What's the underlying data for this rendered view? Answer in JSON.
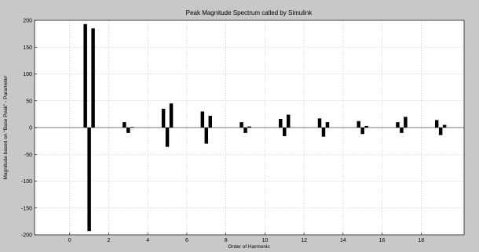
{
  "colors": {
    "figure_bg": "#c8c8c8",
    "axes_bg": "#ffffff",
    "bar": "#000000",
    "zero_line": "#000000"
  },
  "chart_data": {
    "type": "bar",
    "title": "Peak Magnitude Spectrum called by Simulink",
    "xlabel": "Order of Harmonic",
    "ylabel": "Magnitude based on \"Base Peak\" - Parameter",
    "xlim": [
      -1.8,
      20.2
    ],
    "ylim": [
      -200,
      200
    ],
    "xticks": [
      0,
      2,
      4,
      6,
      8,
      10,
      12,
      14,
      16,
      18
    ],
    "yticks": [
      -200,
      -150,
      -100,
      -50,
      0,
      50,
      100,
      150,
      200
    ],
    "grid": true,
    "bar_width": 0.18,
    "bars": [
      {
        "x": 0.8,
        "value": 193
      },
      {
        "x": 1.0,
        "value": -193
      },
      {
        "x": 1.2,
        "value": 185
      },
      {
        "x": 2.8,
        "value": 10
      },
      {
        "x": 3.0,
        "value": -10
      },
      {
        "x": 3.2,
        "value": 1
      },
      {
        "x": 4.8,
        "value": 35
      },
      {
        "x": 5.0,
        "value": -36
      },
      {
        "x": 5.2,
        "value": 45
      },
      {
        "x": 6.8,
        "value": 30
      },
      {
        "x": 7.0,
        "value": -30
      },
      {
        "x": 7.2,
        "value": 22
      },
      {
        "x": 8.8,
        "value": 10
      },
      {
        "x": 9.0,
        "value": -10
      },
      {
        "x": 9.2,
        "value": 2
      },
      {
        "x": 10.8,
        "value": 16
      },
      {
        "x": 11.0,
        "value": -16
      },
      {
        "x": 11.2,
        "value": 24
      },
      {
        "x": 12.8,
        "value": 17
      },
      {
        "x": 13.0,
        "value": -17
      },
      {
        "x": 13.2,
        "value": 10
      },
      {
        "x": 14.8,
        "value": 12
      },
      {
        "x": 15.0,
        "value": -12
      },
      {
        "x": 15.2,
        "value": 3
      },
      {
        "x": 16.8,
        "value": 10
      },
      {
        "x": 17.0,
        "value": -10
      },
      {
        "x": 17.2,
        "value": 20
      },
      {
        "x": 18.8,
        "value": 14
      },
      {
        "x": 19.0,
        "value": -14
      },
      {
        "x": 19.2,
        "value": 5
      }
    ]
  }
}
